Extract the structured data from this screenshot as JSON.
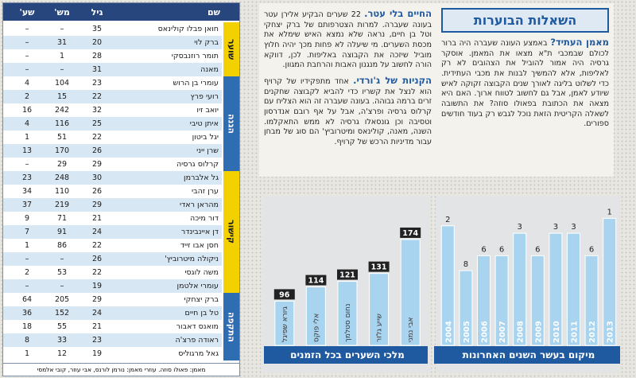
{
  "table": {
    "columns": [
      "שם",
      "גיל",
      "מש'",
      "שע'"
    ],
    "groups": [
      {
        "label": "שוער",
        "color": "#f3d000",
        "rows": [
          {
            "name": "חואן פבלו קולינאס",
            "age": 35,
            "games": "–",
            "goals": "–"
          },
          {
            "name": "ברק לוי",
            "age": 20,
            "games": 31,
            "goals": "–"
          },
          {
            "name": "תומר רוזנבסקי",
            "age": 28,
            "games": 1,
            "goals": "–"
          },
          {
            "name": "מאנה",
            "age": 31,
            "games": "–",
            "goals": "–"
          }
        ]
      },
      {
        "label": "הגנה",
        "color": "#2f6db3",
        "rows": [
          {
            "name": "עומרי בן הרוש",
            "age": 23,
            "games": 104,
            "goals": 4
          },
          {
            "name": "רועי פרץ",
            "age": 22,
            "games": 15,
            "goals": 2
          },
          {
            "name": "יואב זיו",
            "age": 32,
            "games": 242,
            "goals": 16
          },
          {
            "name": "איתן טיבי",
            "age": 25,
            "games": 116,
            "goals": 4
          },
          {
            "name": "יגל ביטון",
            "age": 22,
            "games": 51,
            "goals": 1
          },
          {
            "name": "שרן ייני",
            "age": 26,
            "games": 170,
            "goals": 13
          },
          {
            "name": "קרלוס גרסיה",
            "age": 29,
            "games": 29,
            "goals": "–"
          }
        ]
      },
      {
        "label": "קישור",
        "color": "#f3d000",
        "rows": [
          {
            "name": "גל אלברמן",
            "age": 30,
            "games": 248,
            "goals": 23
          },
          {
            "name": "ערן זהבי",
            "age": 26,
            "games": 110,
            "goals": 34
          },
          {
            "name": "מהראן ראדי",
            "age": 29,
            "games": 219,
            "goals": 37
          },
          {
            "name": "דור מיכה",
            "age": 21,
            "games": 71,
            "goals": 9
          },
          {
            "name": "דן איינבינדר",
            "age": 24,
            "games": 91,
            "goals": 7
          },
          {
            "name": "חסן אבו זייד",
            "age": 22,
            "games": 86,
            "goals": 1
          },
          {
            "name": "ניקולה מיטרוביץ'",
            "age": 26,
            "games": "–",
            "goals": "–"
          },
          {
            "name": "משה לוגסי",
            "age": 22,
            "games": 53,
            "goals": 2
          },
          {
            "name": "עומרי אלטמן",
            "age": 19,
            "games": "–",
            "goals": "–"
          }
        ]
      },
      {
        "label": "התקפה",
        "color": "#2f6db3",
        "rows": [
          {
            "name": "ברק יצחקי",
            "age": 29,
            "games": 205,
            "goals": 64
          },
          {
            "name": "טל בן חיים",
            "age": 24,
            "games": 152,
            "goals": 36
          },
          {
            "name": "מואנס דאבור",
            "age": 21,
            "games": 55,
            "goals": 18
          },
          {
            "name": "ראודה פרצ'ה",
            "age": 23,
            "games": 33,
            "goals": 8
          },
          {
            "name": "גאל מרגוליס",
            "age": 19,
            "games": 12,
            "goals": 1
          }
        ]
      }
    ],
    "footer": "מאמן: פאולו סוזה. עוזרי מאמן: נורמן לורנס, אבי עוזר, קובי אלמסי"
  },
  "article": {
    "title": "השאלות הבוערות",
    "sections": [
      {
        "heading": "מאמן העתיד?",
        "text": "באמצע העונה שעברה היה ברור לכולם שבמכבי ת\"א מצאו את המאמן. אוסקר גרסיה היה אמור להוביל את הצהובים לא רק לאליפות, אלא להמשיך לבנות את מכבי העתידית. כדי לשלוט בליגה לאורך שנים הקבוצה זקוקה לאיש שיודע לאמן, אבל גם לחשוב לטווח ארוך. האם היא מצאה את הכתובת בפאולו סוזה? את התשובה לשאלה הקריטית הזאת נוכל לגבש רק בעוד חודשים ספורים."
      },
      {
        "heading": "החיים בלי עטר.",
        "text": "22 שערים הבקיע אלירן עטר בעונה שעברה. למרות הצטרפותם של ברק יצחקי וטל בן חיים, נראה שלא נמצא האיש שימלא את מכסת השערים. מי שיעלה לא פחות מכך יהיה חלוץ מוביל שיזכה את הקבוצה באליפות. לכן, דווקא הורה לחשוב על מנגנון האבות והרחבת המגוון."
      },
      {
        "heading": "הקניות של ג'ורדי.",
        "text": "אחד מתפקידיו של קרויף הוא לנצל את קשריו כדי להביא לקבוצה שחקנים זרים ברמה גבוהה. בעונה שעברה זה הוא הצליח עם קרלוס גרסיה ופרצ'ה, אבל על אף רובם אנדרסון וטסיבה וכן גונסאלו גרסיה לא ממש התאקלמו. השנה, מאנה, קולינאס ומיטרוביץ' הם סוג של מבחן עבור מדיניות הרכש של קרויף."
      }
    ]
  },
  "chart_data": [
    {
      "type": "bar",
      "title": "מלכי השערים בכל הזמנים",
      "categories": [
        "גיורא שפיגל",
        "אלי פוקס",
        "נחום סטלמך",
        "שייע גלזר",
        "אבי נמני"
      ],
      "values": [
        96,
        114,
        121,
        131,
        174
      ],
      "color": "#a9d4ef",
      "ylim": [
        40,
        180
      ]
    },
    {
      "type": "bar",
      "title": "מיקום בעשר השנים האחרונות",
      "categories": [
        "2004",
        "2005",
        "2006",
        "2007",
        "2008",
        "2009",
        "2010",
        "2011",
        "2012",
        "2013"
      ],
      "values": [
        2,
        8,
        6,
        6,
        3,
        6,
        3,
        3,
        6,
        1
      ],
      "color": "#a9d4ef",
      "ylim": [
        18,
        0
      ]
    }
  ]
}
